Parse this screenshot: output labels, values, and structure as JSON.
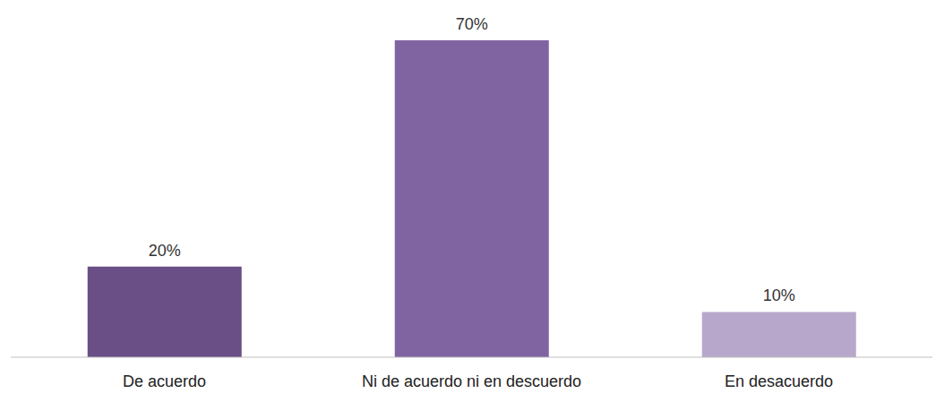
{
  "chart_data": {
    "type": "bar",
    "categories": [
      "De acuerdo",
      "Ni de acuerdo ni en descuerdo",
      "En desacuerdo"
    ],
    "values": [
      20,
      70,
      10
    ],
    "value_labels": [
      "20%",
      "70%",
      "10%"
    ],
    "colors": [
      "#6a4f87",
      "#8064a2",
      "#b7a8cb"
    ],
    "ylim": [
      0,
      70
    ],
    "data_labels": true,
    "tick_labels": "x"
  }
}
